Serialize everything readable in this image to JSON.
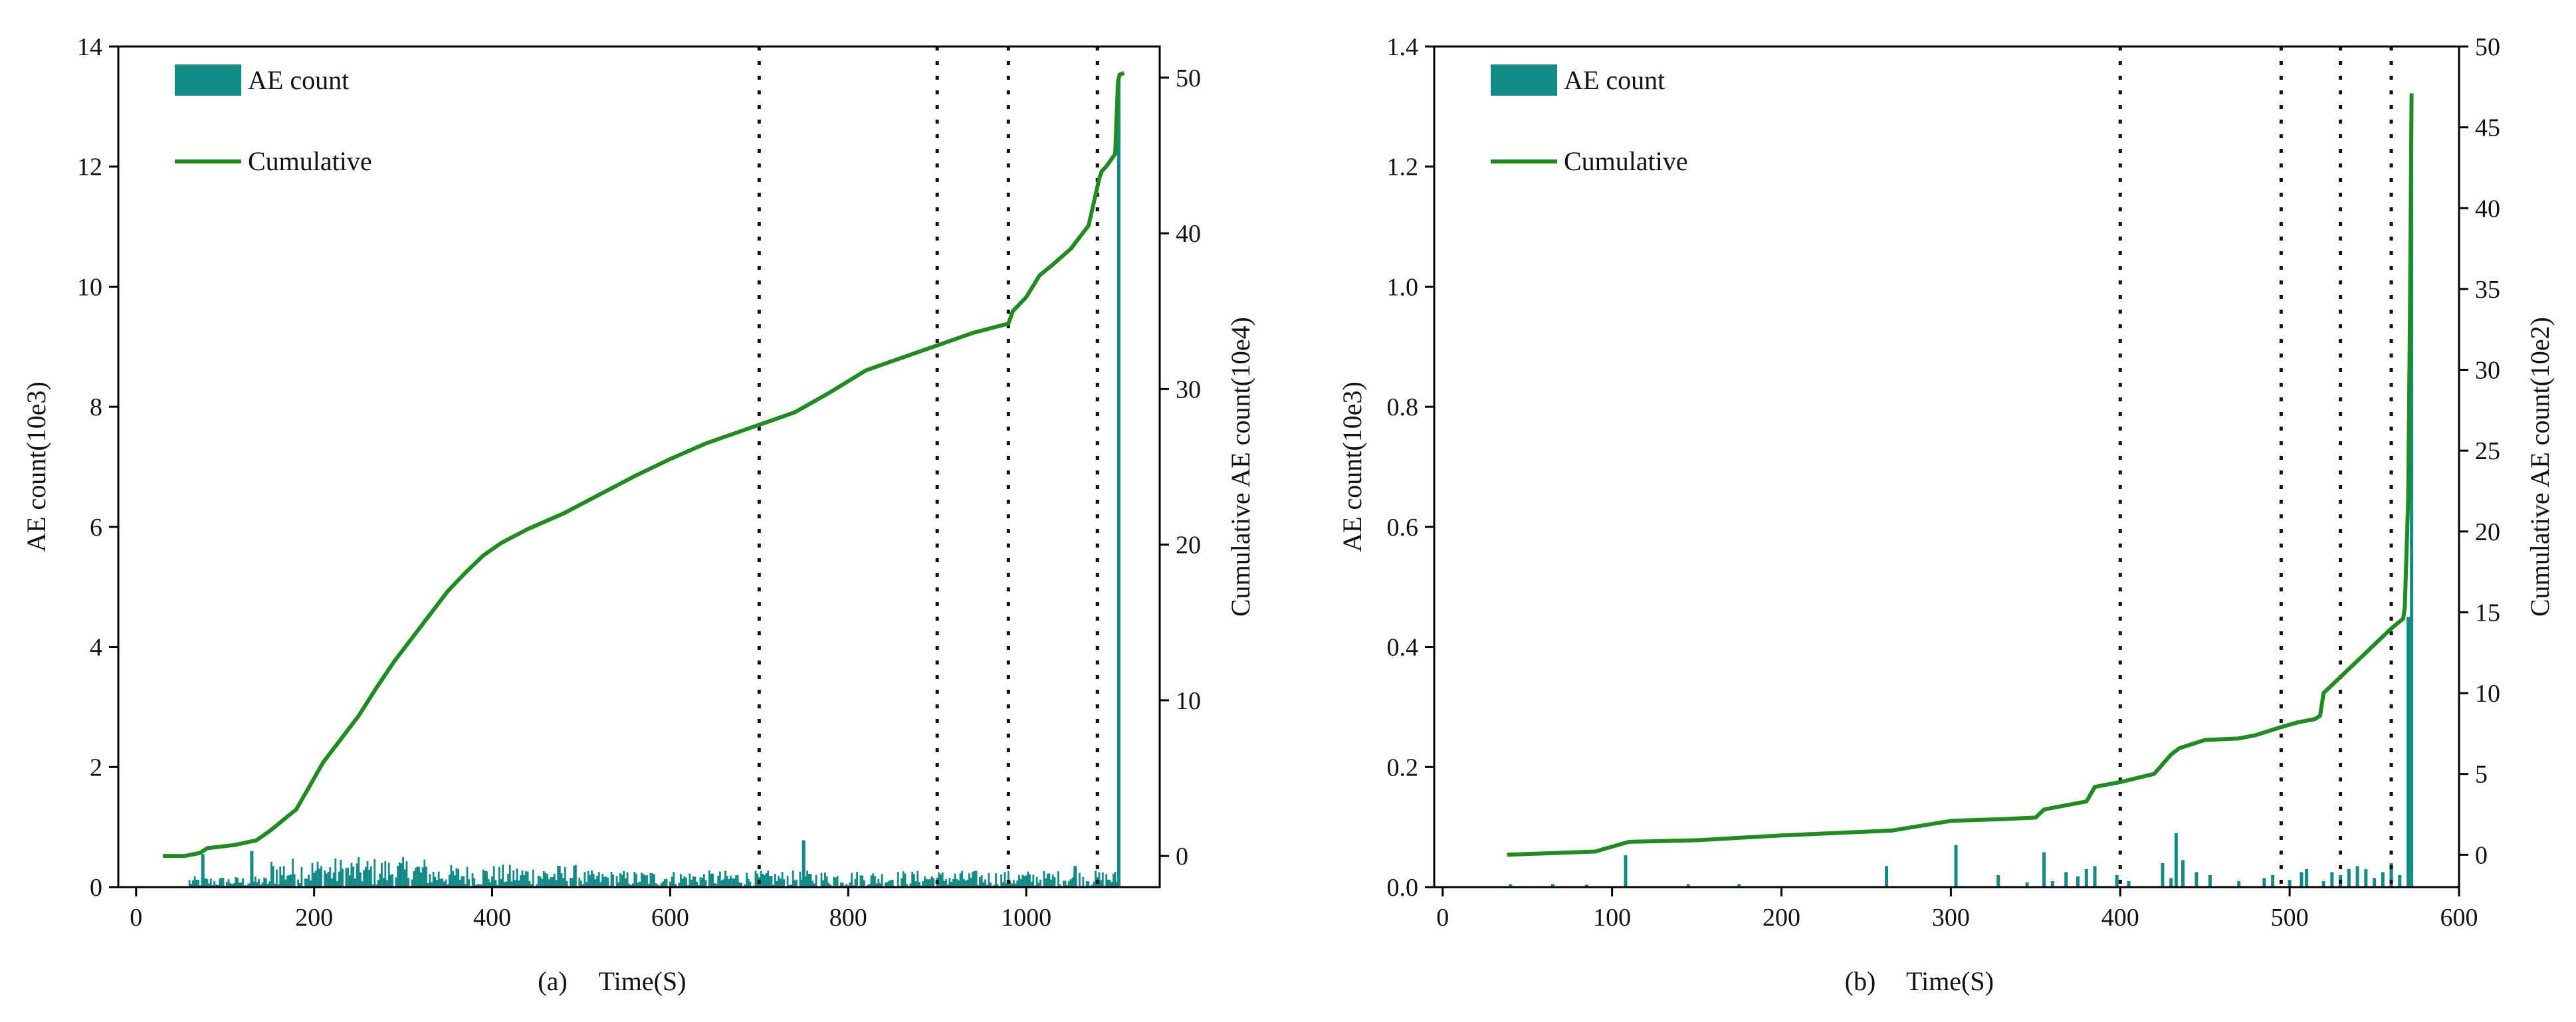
{
  "colors": {
    "bar": "#118a88",
    "line": "#1f8c1f",
    "axis": "#000000",
    "marker": "#111111"
  },
  "chart_data": [
    {
      "id": "a",
      "type": "bar+line",
      "panel_label": "(a)",
      "xlabel": "Time(S)",
      "ylabel_left": "AE count(10e3)",
      "ylabel_right": "Cumulative AE count(10e4)",
      "xlim": [
        -20,
        1150
      ],
      "ylim_left": [
        0,
        14
      ],
      "ylim_right": [
        -2,
        52
      ],
      "xticks": [
        0,
        200,
        400,
        600,
        800,
        1000
      ],
      "yticks_left": [
        0,
        2,
        4,
        6,
        8,
        10,
        12,
        14
      ],
      "yticks_right": [
        0,
        10,
        20,
        30,
        40,
        50
      ],
      "stage_markers": [
        700,
        900,
        980,
        1080
      ],
      "legend": {
        "bar": "AE count",
        "line": "Cumulative",
        "position": "top-left"
      },
      "bar_series": {
        "name": "AE count",
        "x_range": [
          60,
          1105
        ],
        "typical_max": 0.5,
        "spikes": [
          [
            75,
            0.55
          ],
          [
            130,
            0.6
          ],
          [
            750,
            0.78
          ],
          [
            1055,
            0.35
          ],
          [
            1104,
            13.5
          ]
        ]
      },
      "line_series": {
        "name": "Cumulative",
        "x": [
          30,
          55,
          72,
          80,
          110,
          135,
          150,
          165,
          180,
          195,
          210,
          230,
          250,
          270,
          290,
          310,
          330,
          350,
          370,
          390,
          410,
          440,
          480,
          520,
          560,
          600,
          640,
          680,
          700,
          740,
          780,
          820,
          850,
          900,
          940,
          980,
          985,
          1000,
          1015,
          1030,
          1050,
          1070,
          1078,
          1082,
          1085,
          1090,
          1100,
          1103,
          1105,
          1110
        ],
        "y": [
          0,
          0,
          0.2,
          0.5,
          0.7,
          1.0,
          1.6,
          2.3,
          3.0,
          4.5,
          6.0,
          7.5,
          9.0,
          10.8,
          12.5,
          14.0,
          15.5,
          17.0,
          18.2,
          19.3,
          20.1,
          21.0,
          22.0,
          23.2,
          24.4,
          25.5,
          26.5,
          27.3,
          27.7,
          28.5,
          29.8,
          31.2,
          31.8,
          32.8,
          33.6,
          34.2,
          35.0,
          35.9,
          37.3,
          38.0,
          39.0,
          40.5,
          42.5,
          43.5,
          44.0,
          44.3,
          45.1,
          49.7,
          50.2,
          50.3
        ]
      }
    },
    {
      "id": "b",
      "type": "bar+line",
      "panel_label": "(b)",
      "xlabel": "Time(S)",
      "ylabel_left": "AE count(10e3)",
      "ylabel_right": "Cumulative AE count(10e2)",
      "xlim": [
        -5,
        600
      ],
      "ylim_left": [
        0,
        1.4
      ],
      "ylim_right": [
        -2,
        50
      ],
      "xticks": [
        0,
        100,
        200,
        300,
        400,
        500,
        600
      ],
      "yticks_left": [
        0.0,
        0.2,
        0.4,
        0.6,
        0.8,
        1.0,
        1.2,
        1.4
      ],
      "yticks_right": [
        0,
        5,
        10,
        15,
        20,
        25,
        30,
        35,
        40,
        45,
        50
      ],
      "stage_markers": [
        400,
        495,
        530,
        560
      ],
      "legend": {
        "bar": "AE count",
        "line": "Cumulative",
        "position": "top-left"
      },
      "bar_series": {
        "name": "AE count",
        "x": [
          40,
          65,
          85,
          108,
          145,
          175,
          262,
          303,
          328,
          345,
          355,
          360,
          368,
          375,
          380,
          385,
          398,
          405,
          425,
          430,
          433,
          437,
          445,
          453,
          470,
          485,
          490,
          500,
          507,
          510,
          520,
          525,
          530,
          535,
          540,
          545,
          550,
          555,
          560,
          565,
          570,
          572
        ],
        "y": [
          0.005,
          0.005,
          0.004,
          0.053,
          0.005,
          0.005,
          0.035,
          0.07,
          0.02,
          0.008,
          0.058,
          0.01,
          0.025,
          0.018,
          0.03,
          0.035,
          0.02,
          0.01,
          0.04,
          0.015,
          0.09,
          0.045,
          0.025,
          0.02,
          0.01,
          0.015,
          0.02,
          0.012,
          0.025,
          0.03,
          0.01,
          0.025,
          0.02,
          0.03,
          0.035,
          0.03,
          0.015,
          0.025,
          0.04,
          0.02,
          0.45,
          1.32
        ]
      },
      "line_series": {
        "name": "Cumulative",
        "x": [
          38,
          90,
          110,
          150,
          200,
          265,
          300,
          330,
          350,
          355,
          370,
          380,
          385,
          400,
          420,
          430,
          435,
          450,
          470,
          480,
          495,
          505,
          515,
          518,
          520,
          530,
          545,
          555,
          560,
          567,
          568,
          570,
          571,
          572
        ],
        "y": [
          0,
          0.2,
          0.8,
          0.9,
          1.2,
          1.5,
          2.1,
          2.2,
          2.3,
          2.8,
          3.1,
          3.3,
          4.2,
          4.5,
          5.0,
          6.2,
          6.6,
          7.1,
          7.2,
          7.4,
          7.9,
          8.2,
          8.4,
          8.6,
          10.0,
          11.0,
          12.5,
          13.5,
          14.0,
          14.6,
          15.3,
          22.0,
          33.0,
          47.1
        ]
      }
    }
  ]
}
